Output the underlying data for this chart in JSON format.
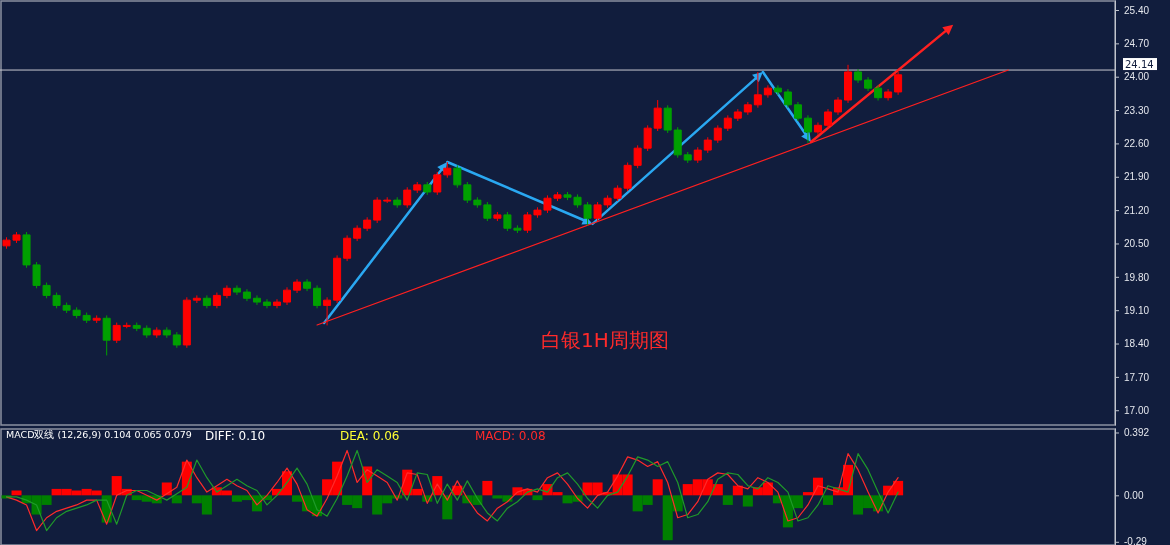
{
  "chart_data": [
    {
      "type": "candlestick",
      "categories": [
        null,
        null,
        null,
        null,
        null,
        null,
        null,
        null,
        null,
        null,
        null,
        null,
        null,
        null,
        null,
        null,
        null,
        null,
        null,
        null,
        null,
        null,
        null,
        null,
        null,
        null,
        null,
        null,
        null,
        null,
        null,
        null,
        null,
        null,
        null,
        null,
        null,
        null,
        null,
        null,
        null,
        null,
        null,
        null,
        null,
        null,
        null,
        null,
        null,
        null,
        null,
        null,
        null,
        null,
        null,
        null,
        null,
        null,
        null,
        null,
        null,
        null,
        null,
        null,
        null,
        null,
        null,
        null,
        null,
        null,
        null,
        null,
        null,
        null,
        null,
        null,
        null,
        null,
        null,
        null,
        null,
        null,
        null,
        null,
        null,
        null,
        null,
        null,
        null,
        null,
        null,
        null,
        null,
        null,
        null,
        null,
        null,
        null,
        null,
        null,
        null,
        null,
        null,
        null,
        null,
        null,
        null,
        null,
        null,
        null,
        null
      ],
      "ohlc": [
        [
          20.45,
          20.63,
          20.39,
          20.57
        ],
        [
          20.57,
          20.74,
          20.51,
          20.68
        ],
        [
          20.68,
          20.74,
          19.99,
          20.05
        ],
        [
          20.05,
          20.11,
          19.56,
          19.62
        ],
        [
          19.62,
          19.68,
          19.35,
          19.41
        ],
        [
          19.41,
          19.47,
          19.14,
          19.2
        ],
        [
          19.2,
          19.26,
          19.04,
          19.1
        ],
        [
          19.1,
          19.16,
          18.93,
          18.99
        ],
        [
          18.99,
          19.05,
          18.83,
          18.89
        ],
        [
          18.89,
          18.99,
          18.83,
          18.93
        ],
        [
          18.93,
          18.99,
          18.15,
          18.47
        ],
        [
          18.47,
          18.84,
          18.41,
          18.78
        ],
        [
          18.78,
          18.84,
          18.72,
          18.78
        ],
        [
          18.78,
          18.84,
          18.66,
          18.72
        ],
        [
          18.72,
          18.78,
          18.52,
          18.58
        ],
        [
          18.58,
          18.74,
          18.52,
          18.68
        ],
        [
          18.68,
          18.74,
          18.52,
          18.58
        ],
        [
          18.58,
          18.64,
          18.31,
          18.37
        ],
        [
          18.37,
          19.37,
          18.31,
          19.31
        ],
        [
          19.31,
          19.41,
          19.25,
          19.35
        ],
        [
          19.35,
          19.41,
          19.14,
          19.2
        ],
        [
          19.2,
          19.47,
          19.14,
          19.41
        ],
        [
          19.41,
          19.62,
          19.35,
          19.56
        ],
        [
          19.56,
          19.62,
          19.42,
          19.48
        ],
        [
          19.48,
          19.54,
          19.29,
          19.35
        ],
        [
          19.35,
          19.41,
          19.21,
          19.27
        ],
        [
          19.27,
          19.33,
          19.14,
          19.2
        ],
        [
          19.2,
          19.33,
          19.14,
          19.27
        ],
        [
          19.27,
          19.58,
          19.21,
          19.52
        ],
        [
          19.52,
          19.75,
          19.46,
          19.69
        ],
        [
          19.69,
          19.75,
          19.5,
          19.56
        ],
        [
          19.56,
          19.62,
          19.14,
          19.2
        ],
        [
          19.2,
          19.37,
          18.78,
          19.31
        ],
        [
          19.31,
          20.25,
          19.25,
          20.19
        ],
        [
          20.19,
          20.67,
          20.13,
          20.61
        ],
        [
          20.61,
          20.88,
          20.55,
          20.82
        ],
        [
          20.82,
          21.05,
          20.76,
          20.99
        ],
        [
          20.99,
          21.47,
          20.93,
          21.41
        ],
        [
          21.41,
          21.47,
          21.35,
          21.41
        ],
        [
          21.41,
          21.47,
          21.25,
          21.31
        ],
        [
          21.31,
          21.68,
          21.25,
          21.62
        ],
        [
          21.62,
          21.79,
          21.56,
          21.73
        ],
        [
          21.73,
          21.79,
          21.52,
          21.58
        ],
        [
          21.58,
          22.0,
          21.52,
          21.94
        ],
        [
          21.94,
          22.21,
          21.88,
          22.08
        ],
        [
          22.08,
          22.14,
          21.67,
          21.73
        ],
        [
          21.73,
          21.79,
          21.35,
          21.41
        ],
        [
          21.41,
          21.47,
          21.25,
          21.31
        ],
        [
          21.31,
          21.37,
          20.97,
          21.03
        ],
        [
          21.03,
          21.16,
          20.97,
          21.1
        ],
        [
          21.1,
          21.16,
          20.76,
          20.82
        ],
        [
          20.82,
          20.88,
          20.72,
          20.78
        ],
        [
          20.78,
          21.16,
          20.72,
          21.1
        ],
        [
          21.1,
          21.26,
          21.04,
          21.2
        ],
        [
          21.2,
          21.51,
          21.14,
          21.45
        ],
        [
          21.45,
          21.58,
          21.39,
          21.52
        ],
        [
          21.52,
          21.58,
          21.41,
          21.47
        ],
        [
          21.47,
          21.53,
          21.25,
          21.31
        ],
        [
          21.31,
          21.37,
          20.88,
          21.03
        ],
        [
          21.03,
          21.37,
          20.97,
          21.31
        ],
        [
          21.31,
          21.51,
          21.25,
          21.45
        ],
        [
          21.45,
          21.72,
          21.39,
          21.66
        ],
        [
          21.66,
          22.2,
          21.6,
          22.14
        ],
        [
          22.14,
          22.56,
          22.08,
          22.5
        ],
        [
          22.5,
          22.98,
          22.44,
          22.92
        ],
        [
          22.92,
          23.51,
          22.86,
          23.34
        ],
        [
          23.34,
          23.4,
          22.82,
          22.88
        ],
        [
          22.88,
          22.94,
          22.3,
          22.36
        ],
        [
          22.36,
          22.42,
          22.19,
          22.25
        ],
        [
          22.25,
          22.52,
          22.19,
          22.46
        ],
        [
          22.46,
          22.73,
          22.4,
          22.67
        ],
        [
          22.67,
          22.98,
          22.61,
          22.92
        ],
        [
          22.92,
          23.19,
          22.86,
          23.13
        ],
        [
          23.13,
          23.32,
          23.07,
          23.26
        ],
        [
          23.26,
          23.47,
          23.2,
          23.41
        ],
        [
          23.41,
          24.1,
          23.35,
          23.62
        ],
        [
          23.62,
          23.82,
          23.56,
          23.76
        ],
        [
          23.76,
          23.82,
          23.62,
          23.68
        ],
        [
          23.68,
          23.74,
          23.35,
          23.41
        ],
        [
          23.41,
          23.47,
          23.07,
          23.13
        ],
        [
          23.13,
          23.19,
          22.61,
          22.84
        ],
        [
          22.84,
          23.04,
          22.78,
          22.98
        ],
        [
          22.98,
          23.32,
          22.92,
          23.26
        ],
        [
          23.26,
          23.57,
          23.2,
          23.51
        ],
        [
          23.51,
          24.25,
          23.45,
          24.1
        ],
        [
          24.1,
          24.16,
          23.87,
          23.93
        ],
        [
          23.93,
          23.99,
          23.7,
          23.76
        ],
        [
          23.76,
          23.82,
          23.5,
          23.56
        ],
        [
          23.56,
          23.74,
          23.5,
          23.68
        ],
        [
          23.68,
          24.1,
          23.62,
          24.04
        ],
        null,
        null,
        null,
        null,
        null,
        null,
        null,
        null,
        null,
        null,
        null,
        null,
        null,
        null,
        null,
        null,
        null,
        null,
        null,
        null,
        null
      ],
      "colors": [
        "#ff0000",
        "#ff0000",
        "#00a000",
        "#00a000",
        "#00a000",
        "#00a000",
        "#00a000",
        "#00a000",
        "#00a000",
        "#ff0000",
        "#00a000",
        "#ff0000",
        "#ff0000",
        "#00a000",
        "#00a000",
        "#ff0000",
        "#00a000",
        "#00a000",
        "#ff0000",
        "#ff0000",
        "#00a000",
        "#ff0000",
        "#ff0000",
        "#00a000",
        "#00a000",
        "#00a000",
        "#00a000",
        "#ff0000",
        "#ff0000",
        "#ff0000",
        "#00a000",
        "#00a000",
        "#ff0000",
        "#ff0000",
        "#ff0000",
        "#ff0000",
        "#ff0000",
        "#ff0000",
        "#ff0000",
        "#00a000",
        "#ff0000",
        "#ff0000",
        "#00a000",
        "#ff0000",
        "#ff0000",
        "#00a000",
        "#00a000",
        "#00a000",
        "#00a000",
        "#ff0000",
        "#00a000",
        "#00a000",
        "#ff0000",
        "#ff0000",
        "#ff0000",
        "#ff0000",
        "#00a000",
        "#00a000",
        "#00a000",
        "#ff0000",
        "#ff0000",
        "#ff0000",
        "#ff0000",
        "#ff0000",
        "#ff0000",
        "#ff0000",
        "#00a000",
        "#00a000",
        "#00a000",
        "#ff0000",
        "#ff0000",
        "#ff0000",
        "#ff0000",
        "#ff0000",
        "#ff0000",
        "#ff0000",
        "#ff0000",
        "#00a000",
        "#00a000",
        "#00a000",
        "#00a000",
        "#ff0000",
        "#ff0000",
        "#ff0000",
        "#ff0000",
        "#00a000",
        "#00a000",
        "#00a000",
        "#ff0000",
        "#ff0000",
        null,
        null,
        null,
        null,
        null,
        null,
        null,
        null,
        null,
        null,
        null,
        null,
        null,
        null,
        null,
        null,
        null,
        null,
        null,
        null,
        null
      ],
      "series": [
        {
          "type": "line",
          "color": "#ff2020",
          "values": [
            null,
            null,
            null,
            null,
            null,
            null,
            null,
            null,
            null,
            null,
            null,
            null,
            null,
            null,
            null,
            null,
            null,
            null,
            null,
            null,
            null,
            null,
            null,
            null,
            null,
            null,
            null,
            null,
            null,
            null,
            null,
            18.79,
            null,
            null,
            null,
            null,
            null,
            null,
            null,
            null,
            null,
            null,
            null,
            null,
            null,
            null,
            null,
            null,
            null,
            null,
            null,
            null,
            null,
            null,
            null,
            null,
            null,
            null,
            null,
            null,
            null,
            null,
            null,
            null,
            null,
            null,
            null,
            null,
            null,
            null,
            null,
            null,
            null,
            null,
            null,
            null,
            null,
            null,
            null,
            null,
            null,
            null,
            null,
            null,
            null,
            null,
            null,
            null,
            null,
            null,
            null,
            null,
            null,
            null,
            null,
            null,
            null,
            null,
            null,
            null,
            24.14,
            null,
            null,
            null,
            null,
            null,
            null,
            null,
            null,
            null,
            null
          ]
        }
      ],
      "ylim": [
        16.69,
        25.61
      ],
      "yticks": [
        {
          "value": 17,
          "label": "17.00"
        },
        {
          "value": 17.7,
          "label": "17.70"
        },
        {
          "value": 18.4,
          "label": "18.40"
        },
        {
          "value": 19.1,
          "label": "19.10"
        },
        {
          "value": 19.8,
          "label": "19.80"
        },
        {
          "value": 20.5,
          "label": "20.50"
        },
        {
          "value": 21.2,
          "label": "21.20"
        },
        {
          "value": 21.9,
          "label": "21.90"
        },
        {
          "value": 22.6,
          "label": "22.60"
        },
        {
          "value": 23.3,
          "label": "23.30"
        },
        {
          "value": 24,
          "label": "24.00"
        },
        {
          "value": 24.7,
          "label": "24.70"
        },
        {
          "value": 25.4,
          "label": "25.40"
        }
      ],
      "tick_labels": "y",
      "ref_lines": [
        {
          "axis": "y",
          "value": 24.14,
          "label": "24.14",
          "color": "#c8c8d0"
        }
      ],
      "annotations": [
        "白银1H周期图"
      ]
    },
    {
      "type": "bar",
      "title": "MACD双线 (12,26,9) 0.104 0.065 0.079",
      "categories": [
        null,
        null,
        null,
        null,
        null,
        null,
        null,
        null,
        null,
        null,
        null,
        null,
        null,
        null,
        null,
        null,
        null,
        null,
        null,
        null,
        null,
        null,
        null,
        null,
        null,
        null,
        null,
        null,
        null,
        null,
        null,
        null,
        null,
        null,
        null,
        null,
        null,
        null,
        null,
        null,
        null,
        null,
        null,
        null,
        null,
        null,
        null,
        null,
        null,
        null,
        null,
        null,
        null,
        null,
        null,
        null,
        null,
        null,
        null,
        null,
        null,
        null,
        null,
        null,
        null,
        null,
        null,
        null,
        null,
        null,
        null,
        null,
        null,
        null,
        null,
        null,
        null,
        null,
        null,
        null,
        null,
        null,
        null,
        null,
        null,
        null,
        null,
        null,
        null,
        null,
        null,
        null,
        null,
        null,
        null,
        null,
        null,
        null,
        null,
        null,
        null,
        null,
        null,
        null,
        null,
        null,
        null,
        null,
        null,
        null,
        null
      ],
      "series": [
        {
          "type": "bar",
          "values": [
            -0.02,
            0.03,
            -0.05,
            -0.12,
            -0.06,
            0.04,
            0.04,
            0.03,
            0.04,
            0.03,
            -0.17,
            0.12,
            0.04,
            -0.03,
            -0.04,
            -0.05,
            0.08,
            -0.05,
            0.21,
            -0.05,
            -0.12,
            0.05,
            0.03,
            -0.04,
            -0.03,
            -0.1,
            -0.03,
            0.04,
            0.15,
            -0.04,
            -0.1,
            -0.13,
            0.1,
            0.21,
            -0.06,
            -0.08,
            0.18,
            -0.12,
            -0.05,
            -0.02,
            0.16,
            0.04,
            -0.04,
            0.12,
            -0.15,
            0.06,
            -0.05,
            -0.06,
            0.09,
            -0.02,
            -0.04,
            0.05,
            0.04,
            -0.03,
            0.07,
            0.02,
            -0.05,
            -0.04,
            0.08,
            0.08,
            0.02,
            0.13,
            0.13,
            -0.1,
            -0.06,
            0.1,
            -0.28,
            -0.1,
            0.07,
            0.1,
            0.1,
            0.07,
            -0.06,
            0.06,
            -0.07,
            0.05,
            0.08,
            -0.05,
            -0.2,
            -0.08,
            0.02,
            0.11,
            -0.06,
            0.05,
            0.19,
            -0.12,
            -0.08,
            -0.1,
            0.06,
            0.09,
            null,
            null,
            null,
            null,
            null,
            null,
            null,
            null,
            null,
            null,
            null,
            null,
            null,
            null,
            null,
            null,
            null,
            null,
            null,
            null,
            null
          ],
          "colors": [
            "#008000",
            "#ff0000",
            "#008000",
            "#008000",
            "#008000",
            "#ff0000",
            "#ff0000",
            "#ff0000",
            "#ff0000",
            "#ff0000",
            "#008000",
            "#ff0000",
            "#ff0000",
            "#008000",
            "#008000",
            "#008000",
            "#ff0000",
            "#008000",
            "#ff0000",
            "#008000",
            "#008000",
            "#ff0000",
            "#ff0000",
            "#008000",
            "#008000",
            "#008000",
            "#008000",
            "#ff0000",
            "#ff0000",
            "#008000",
            "#008000",
            "#008000",
            "#ff0000",
            "#ff0000",
            "#008000",
            "#008000",
            "#ff0000",
            "#008000",
            "#008000",
            "#008000",
            "#ff0000",
            "#ff0000",
            "#008000",
            "#ff0000",
            "#008000",
            "#ff0000",
            "#008000",
            "#008000",
            "#ff0000",
            "#008000",
            "#008000",
            "#ff0000",
            "#ff0000",
            "#008000",
            "#ff0000",
            "#ff0000",
            "#008000",
            "#008000",
            "#ff0000",
            "#ff0000",
            "#ff0000",
            "#ff0000",
            "#ff0000",
            "#008000",
            "#008000",
            "#ff0000",
            "#008000",
            "#008000",
            "#ff0000",
            "#ff0000",
            "#ff0000",
            "#ff0000",
            "#008000",
            "#ff0000",
            "#008000",
            "#ff0000",
            "#ff0000",
            "#008000",
            "#008000",
            "#008000",
            "#ff0000",
            "#ff0000",
            "#008000",
            "#ff0000",
            "#ff0000",
            "#008000",
            "#008000",
            "#008000",
            "#ff0000",
            "#ff0000",
            null,
            null,
            null,
            null,
            null,
            null,
            null,
            null,
            null,
            null,
            null,
            null,
            null,
            null,
            null,
            null,
            null,
            null,
            null,
            null,
            null
          ]
        },
        {
          "type": "line",
          "color": "#ff2a2a",
          "values": [
            -0.01,
            -0.03,
            -0.06,
            -0.22,
            -0.14,
            -0.1,
            -0.08,
            -0.06,
            -0.03,
            -0.03,
            -0.18,
            0.0,
            0.03,
            0.03,
            0.0,
            -0.03,
            0.01,
            0.05,
            0.22,
            0.11,
            0.02,
            0.06,
            0.1,
            0.06,
            0.03,
            -0.06,
            0.0,
            0.08,
            0.17,
            0.07,
            -0.09,
            -0.13,
            -0.02,
            0.12,
            0.28,
            0.08,
            0.16,
            0.12,
            0.08,
            -0.03,
            0.14,
            0.13,
            -0.05,
            0.07,
            -0.03,
            0.09,
            -0.02,
            -0.11,
            -0.16,
            -0.08,
            -0.04,
            0.02,
            0.04,
            0.02,
            0.11,
            0.14,
            0.07,
            -0.02,
            -0.08,
            0.0,
            0.02,
            0.12,
            0.24,
            0.22,
            0.18,
            0.21,
            0.08,
            -0.14,
            -0.12,
            -0.04,
            0.1,
            0.14,
            0.13,
            0.06,
            0.04,
            0.11,
            0.08,
            0.02,
            -0.16,
            -0.14,
            -0.06,
            0.06,
            0.04,
            0.02,
            0.26,
            0.16,
            0.02,
            -0.11,
            0.02,
            0.11,
            null,
            null,
            null,
            null,
            null,
            null,
            null,
            null,
            null,
            null,
            null,
            null,
            null,
            null,
            null,
            null,
            null,
            null,
            null,
            null,
            null
          ]
        },
        {
          "type": "line",
          "color": "#1f9a2a",
          "values": [
            -0.01,
            -0.01,
            -0.03,
            -0.06,
            -0.22,
            -0.14,
            -0.1,
            -0.08,
            -0.06,
            -0.03,
            -0.03,
            -0.18,
            0.0,
            0.03,
            0.03,
            0.0,
            -0.03,
            0.01,
            0.05,
            0.22,
            0.11,
            0.02,
            0.06,
            0.1,
            0.06,
            0.03,
            -0.06,
            0.0,
            0.08,
            0.17,
            0.07,
            -0.09,
            -0.13,
            -0.02,
            0.12,
            0.28,
            0.08,
            0.16,
            0.12,
            0.08,
            -0.03,
            0.14,
            0.13,
            -0.05,
            0.07,
            -0.03,
            0.09,
            -0.02,
            -0.11,
            -0.16,
            -0.08,
            -0.04,
            0.02,
            0.04,
            0.02,
            0.11,
            0.14,
            0.07,
            -0.02,
            -0.08,
            0.0,
            0.02,
            0.12,
            0.24,
            0.22,
            0.18,
            0.21,
            0.08,
            -0.14,
            -0.12,
            -0.04,
            0.1,
            0.14,
            0.13,
            0.06,
            0.04,
            0.11,
            0.08,
            0.02,
            -0.16,
            -0.14,
            -0.06,
            0.06,
            0.04,
            0.02,
            0.26,
            0.16,
            0.02,
            -0.11,
            0.02,
            null,
            null,
            null,
            null,
            null,
            null,
            null,
            null,
            null,
            null,
            null,
            null,
            null,
            null,
            null,
            null,
            null,
            null,
            null,
            null,
            null
          ]
        }
      ],
      "ylim": [
        -0.31,
        0.42
      ],
      "yticks": [
        {
          "value": 0.392,
          "label": "0.392"
        },
        {
          "value": 0,
          "label": "0.00"
        },
        {
          "value": -0.29,
          "label": "-0.29"
        }
      ],
      "tick_labels": "y",
      "annotations": [
        "DIFF: 0.10",
        "DEA: 0.06",
        "MACD: 0.08"
      ]
    }
  ]
}
